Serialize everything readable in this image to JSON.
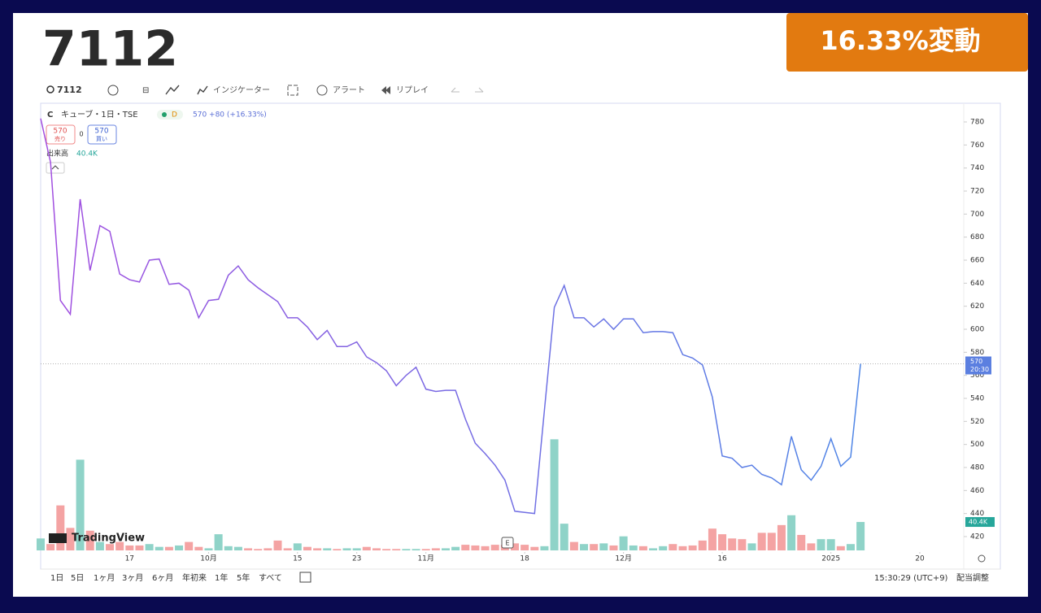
{
  "header": {
    "title": "7112",
    "badge": "16.33%変動"
  },
  "toolbar": {
    "symbol": "7112",
    "items": [
      "インジケーター",
      "アラート",
      "リプレイ"
    ]
  },
  "legend": {
    "icon": "C",
    "symbol_info": "キューブ・1日・TSE",
    "interval": "D",
    "quote": "570 +80 (+16.33%)",
    "sell_price": "570",
    "sell_label": "売り",
    "spread": "0",
    "buy_price": "570",
    "buy_label": "買い",
    "volume_label": "出来高",
    "volume": "40.4K"
  },
  "chart_data": {
    "type": "line",
    "ylim": [
      420,
      780
    ],
    "yticks": [
      420,
      440,
      460,
      480,
      500,
      520,
      540,
      560,
      580,
      600,
      620,
      640,
      660,
      680,
      700,
      720,
      740,
      760,
      780
    ],
    "xlim": [
      0,
      93.2
    ],
    "xticks": [
      {
        "value": 9,
        "label": "17"
      },
      {
        "value": 17,
        "label": "10月"
      },
      {
        "value": 26,
        "label": "15"
      },
      {
        "value": 32,
        "label": "23"
      },
      {
        "value": 39,
        "label": "11月"
      },
      {
        "value": 49,
        "label": "18"
      },
      {
        "value": 59,
        "label": "12月"
      },
      {
        "value": 69,
        "label": "16"
      },
      {
        "value": 80,
        "label": "2025"
      },
      {
        "value": 89,
        "label": "20"
      }
    ],
    "y2lim": [
      0,
      200
    ],
    "series": [
      {
        "color": "#5b7fe0",
        "values": [
          783,
          745,
          625,
          613,
          713,
          651,
          690,
          685,
          648,
          643,
          641,
          660,
          661,
          639,
          640,
          634,
          610,
          625,
          626,
          647,
          655,
          643,
          636,
          630,
          624,
          610,
          610,
          602,
          591,
          599,
          585,
          585,
          589,
          576,
          571,
          564,
          551,
          560,
          567,
          548,
          546,
          547,
          547,
          522,
          501,
          492,
          482,
          469,
          442,
          441,
          440,
          530,
          619,
          638,
          610,
          610,
          602,
          609,
          600,
          609,
          609,
          597,
          598,
          598,
          597,
          578,
          575,
          569,
          541,
          490,
          488,
          480,
          482,
          474,
          471,
          465,
          507,
          478,
          469,
          481,
          505,
          481,
          489,
          570
        ]
      },
      {
        "name": "出来高",
        "axis": "y2",
        "color": "#8fd3c8",
        "down_color": "#f4a3a3",
        "values": [
          17,
          9,
          64,
          32,
          129,
          28,
          12,
          9,
          12,
          7,
          7,
          9,
          5,
          5,
          7,
          12,
          5,
          3,
          23,
          6,
          5,
          3,
          2,
          3,
          14,
          3,
          10,
          5,
          3,
          3,
          2,
          3,
          3,
          5,
          3,
          2,
          2,
          2,
          2,
          2,
          3,
          3,
          5,
          8,
          7,
          6,
          8,
          8,
          10,
          8,
          5,
          6,
          158,
          38,
          12,
          9,
          9,
          10,
          7,
          20,
          7,
          6,
          3,
          6,
          9,
          6,
          7,
          14,
          31,
          23,
          17,
          16,
          10,
          25,
          25,
          36,
          50,
          22,
          10,
          16,
          16,
          6,
          9,
          40.4
        ]
      }
    ],
    "volume_badge": "40.4K",
    "countdown": "20:30",
    "logo": "TradingView",
    "event": "E"
  },
  "footer": {
    "ranges": [
      "1日",
      "5日",
      "1ヶ月",
      "3ヶ月",
      "6ヶ月",
      "年初来",
      "1年",
      "5年",
      "すべて"
    ],
    "time": "15:30:29 (UTC+9)",
    "adjust": "配当調整"
  }
}
